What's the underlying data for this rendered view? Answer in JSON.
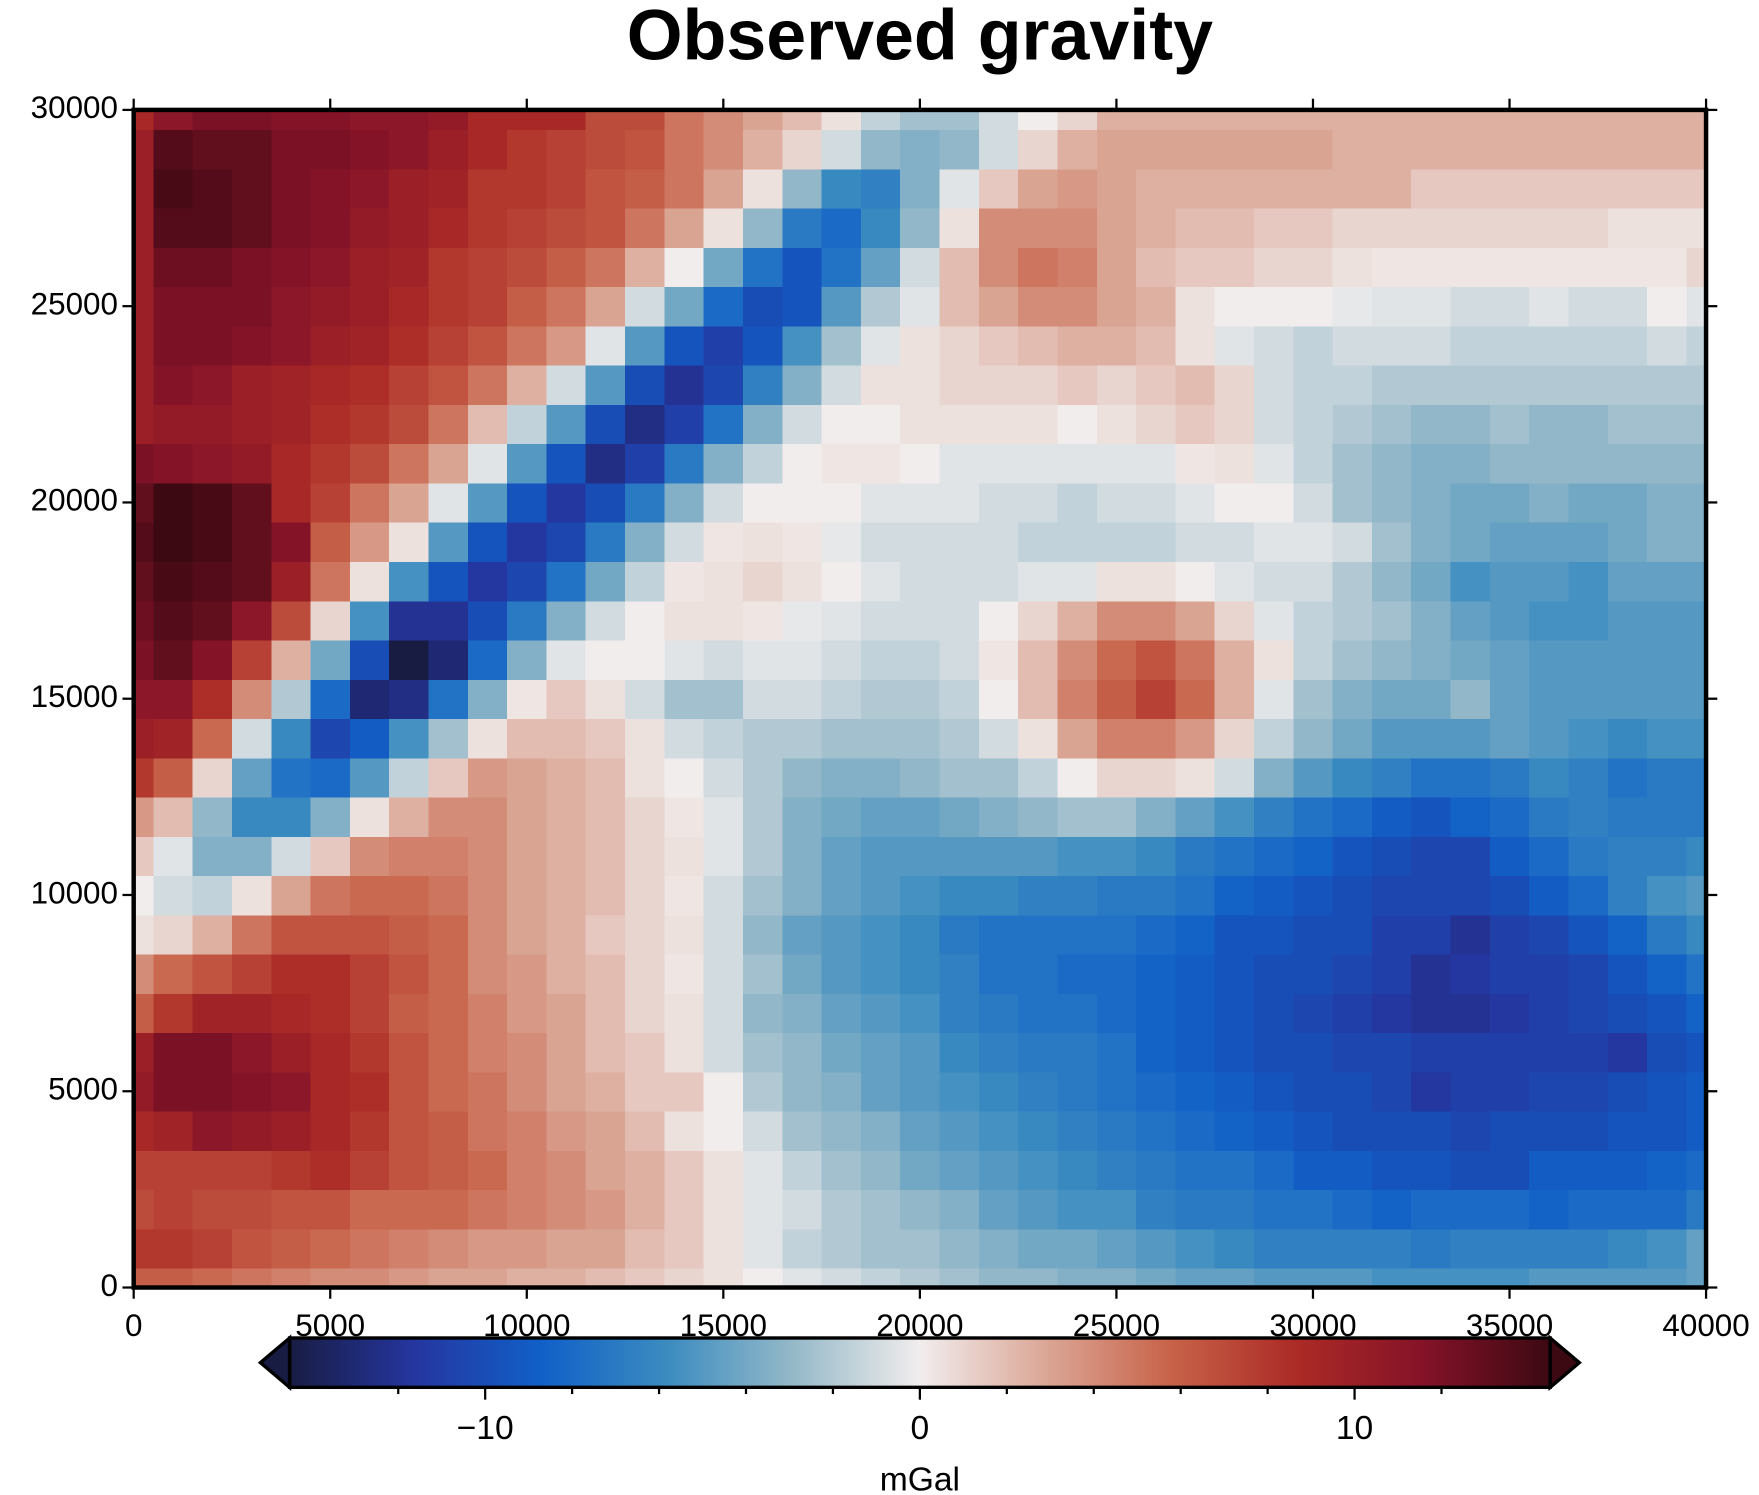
{
  "chart_data": {
    "type": "heatmap",
    "title": "Observed gravity",
    "x": [
      0,
      1000,
      2000,
      3000,
      4000,
      5000,
      6000,
      7000,
      8000,
      9000,
      10000,
      11000,
      12000,
      13000,
      14000,
      15000,
      16000,
      17000,
      18000,
      19000,
      20000,
      21000,
      22000,
      23000,
      24000,
      25000,
      26000,
      27000,
      28000,
      29000,
      30000,
      31000,
      32000,
      33000,
      34000,
      35000,
      36000,
      37000,
      38000,
      39000,
      40000
    ],
    "y": [
      0,
      1000,
      2000,
      3000,
      4000,
      5000,
      6000,
      7000,
      8000,
      9000,
      10000,
      11000,
      12000,
      13000,
      14000,
      15000,
      16000,
      17000,
      18000,
      19000,
      20000,
      21000,
      22000,
      23000,
      24000,
      25000,
      26000,
      27000,
      28000,
      29000,
      30000
    ],
    "z": [
      [
        6,
        6,
        5.5,
        5,
        4.5,
        4,
        4,
        3.5,
        3,
        3,
        2.5,
        2.5,
        2,
        1.5,
        1,
        0.5,
        0,
        -0.5,
        -1,
        -1.5,
        -2,
        -2.5,
        -3,
        -3,
        -3.5,
        -3.5,
        -4,
        -4.5,
        -4.5,
        -5,
        -5,
        -5,
        -5.5,
        -5.5,
        -5.5,
        -5.5,
        -5,
        -5,
        -5,
        -5,
        -4.5
      ],
      [
        8,
        8,
        7.5,
        6.5,
        6,
        5.5,
        5,
        4.5,
        4,
        3.5,
        3.5,
        3,
        3,
        2,
        1.5,
        0.5,
        -0.5,
        -1.5,
        -2,
        -2.5,
        -2.5,
        -3,
        -3.5,
        -4,
        -4,
        -4.5,
        -5,
        -5.5,
        -6,
        -6.5,
        -6.5,
        -6.5,
        -6.5,
        -7,
        -6.5,
        -6.5,
        -6.5,
        -6.5,
        -6,
        -5.5,
        -4.5
      ],
      [
        7,
        7.5,
        7,
        7,
        6.5,
        6.5,
        5.5,
        5.5,
        5.5,
        5,
        4.5,
        4,
        3.5,
        2.5,
        1.5,
        0.5,
        -0.5,
        -1,
        -2,
        -2.5,
        -3,
        -3.5,
        -4.5,
        -5,
        -5.5,
        -5.5,
        -6.5,
        -7,
        -7,
        -7.5,
        -7.5,
        -8,
        -8.5,
        -8,
        -8,
        -8,
        -8.5,
        -8,
        -8,
        -8,
        -7
      ],
      [
        7.5,
        7.5,
        7.5,
        7.5,
        8,
        8.5,
        7.5,
        6.5,
        6,
        5.5,
        4.5,
        4,
        3,
        2.5,
        1.5,
        0.5,
        -0.5,
        -1.5,
        -2.5,
        -3,
        -4,
        -4.5,
        -5,
        -5.5,
        -6,
        -6.5,
        -7,
        -7.5,
        -7.5,
        -8,
        -9,
        -9,
        -9.5,
        -9.5,
        -10,
        -10,
        -9,
        -9,
        -9,
        -8.5,
        -8
      ],
      [
        9,
        9.5,
        11,
        10.5,
        10,
        9,
        8,
        6.5,
        6,
        5,
        4.5,
        3.5,
        3,
        2,
        0.5,
        0,
        -1,
        -2.5,
        -3,
        -3.5,
        -4.5,
        -5,
        -5.5,
        -6,
        -6.5,
        -7,
        -7.5,
        -8,
        -8.5,
        -9,
        -9.5,
        -10,
        -10,
        -10,
        -10.5,
        -10,
        -10,
        -10,
        -9.5,
        -9.5,
        -9
      ],
      [
        10.5,
        12,
        12,
        11.5,
        11,
        9,
        8.5,
        6.5,
        5.5,
        5,
        4,
        3,
        2.5,
        1.5,
        1.5,
        0,
        -2,
        -3,
        -3.5,
        -4.5,
        -5,
        -5.5,
        -6,
        -6.5,
        -7,
        -7.5,
        -8,
        -8.5,
        -9,
        -9.5,
        -10,
        -10,
        -10.5,
        -11.5,
        -11,
        -11,
        -10.5,
        -10.5,
        -10,
        -9.5,
        -9
      ],
      [
        10,
        12,
        12,
        11,
        10,
        9,
        8,
        6.5,
        5.5,
        4.5,
        4,
        3,
        2,
        1.5,
        0.5,
        -1,
        -2.5,
        -3,
        -4,
        -4.5,
        -5,
        -6,
        -6.5,
        -7,
        -7,
        -7.5,
        -8.5,
        -9,
        -9.5,
        -10,
        -10,
        -10.5,
        -10.5,
        -11,
        -11,
        -11,
        -11,
        -11,
        -11.5,
        -10,
        -9.5
      ],
      [
        6,
        8,
        9.5,
        9.5,
        9,
        8.5,
        7.5,
        6,
        5.5,
        4.5,
        3.5,
        3,
        2,
        1,
        0.5,
        -1,
        -3,
        -3.5,
        -4.5,
        -5,
        -5.5,
        -6.5,
        -7,
        -7.5,
        -7.5,
        -8,
        -8.5,
        -9,
        -9.5,
        -10,
        -10.5,
        -11,
        -11.5,
        -12,
        -12,
        -11.5,
        -11,
        -10.5,
        -10,
        -9.5,
        -8.5
      ],
      [
        4,
        5.5,
        6.5,
        7.5,
        8.5,
        8.5,
        7.5,
        6.5,
        5.5,
        4,
        3.5,
        2.5,
        2,
        1,
        0.3,
        -1,
        -2.5,
        -4,
        -5,
        -5.5,
        -6,
        -6.5,
        -7.5,
        -7.5,
        -8,
        -8,
        -8.5,
        -9,
        -9.5,
        -10,
        -10,
        -10.5,
        -11,
        -12,
        -11.5,
        -11,
        -11,
        -10.5,
        -9.5,
        -8.5,
        -7.5
      ],
      [
        0.5,
        1,
        2.5,
        5,
        6.5,
        6.5,
        6.5,
        6,
        5.5,
        4,
        3,
        2.5,
        1.5,
        1,
        0.5,
        -1,
        -3,
        -4.5,
        -5,
        -5.5,
        -6,
        -7,
        -7.5,
        -7.5,
        -7.5,
        -7.5,
        -8,
        -8.5,
        -9.5,
        -9.5,
        -10,
        -10,
        -11,
        -11,
        -12,
        -11,
        -10.5,
        -9.5,
        -8.5,
        -7,
        -6
      ],
      [
        0,
        -1,
        -1.5,
        0.5,
        3,
        5,
        5.5,
        5.5,
        5,
        4,
        3,
        2.5,
        2,
        1,
        0.3,
        -1,
        -2.5,
        -3.5,
        -4.5,
        -5,
        -5.5,
        -6,
        -6,
        -6.5,
        -6.5,
        -7,
        -7,
        -7.5,
        -8.5,
        -9,
        -9.5,
        -10,
        -10.5,
        -10.5,
        -10.5,
        -10,
        -9,
        -8,
        -6.5,
        -5.5,
        -5
      ],
      [
        1.5,
        -0.5,
        -3.5,
        -3.5,
        -1,
        1.5,
        4,
        4.5,
        4.5,
        4,
        3,
        2.5,
        2,
        1,
        0.5,
        -0.5,
        -2,
        -3.5,
        -4.5,
        -5,
        -5,
        -5,
        -5,
        -5,
        -5.5,
        -5.5,
        -6,
        -7,
        -7.5,
        -8,
        -8.5,
        -9.5,
        -10,
        -10.5,
        -10.5,
        -9,
        -8,
        -7,
        -6.5,
        -6.5,
        -6
      ],
      [
        3.5,
        2,
        -3,
        -6,
        -6,
        -3.5,
        0.5,
        2.5,
        4,
        4,
        3,
        2.5,
        2,
        1,
        0.3,
        -0.5,
        -2,
        -3.5,
        -4,
        -4.5,
        -4.5,
        -4,
        -3.5,
        -3,
        -2.5,
        -2.5,
        -3.5,
        -4.5,
        -5.5,
        -6.5,
        -7.5,
        -8,
        -9,
        -9.5,
        -8.5,
        -8,
        -7,
        -6.5,
        -7,
        -7,
        -7
      ],
      [
        8,
        6,
        1,
        -4.5,
        -7.5,
        -8,
        -5,
        -1.5,
        1.5,
        3.5,
        3,
        2.5,
        2,
        0.5,
        0,
        -1,
        -2,
        -3,
        -3.5,
        -3.5,
        -3,
        -2.5,
        -2.5,
        -1.5,
        0,
        1,
        1,
        0.5,
        -1,
        -3.5,
        -5,
        -6,
        -6.5,
        -7.5,
        -7.5,
        -7,
        -6,
        -6.5,
        -7.5,
        -7,
        -7
      ],
      [
        10,
        9.5,
        5.5,
        -1,
        -6,
        -10.5,
        -9,
        -5.5,
        -2.5,
        0.5,
        2,
        2,
        1.5,
        0.5,
        -1,
        -1.5,
        -2,
        -2,
        -2.5,
        -2.5,
        -2.5,
        -2,
        -1,
        0.5,
        3,
        4.5,
        4.5,
        3.5,
        1,
        -1.5,
        -3,
        -4,
        -5,
        -5,
        -5,
        -4.5,
        -5,
        -5.5,
        -6,
        -5.5,
        -5.5
      ],
      [
        11,
        11,
        8.5,
        4,
        -2,
        -8,
        -13,
        -12.5,
        -7.5,
        -3.5,
        0.3,
        1.5,
        0.5,
        -1,
        -2.5,
        -2.5,
        -1,
        -1,
        -1.5,
        -2,
        -2,
        -1.5,
        0,
        2,
        4.5,
        6,
        7.5,
        5.5,
        2.5,
        -0.5,
        -2.5,
        -3.5,
        -4,
        -4,
        -3,
        -4.5,
        -5,
        -5,
        -5,
        -5,
        -5
      ],
      [
        12,
        13,
        11.5,
        7.5,
        2.5,
        -4,
        -10,
        -14.5,
        -13,
        -8,
        -3.5,
        -0.5,
        0,
        0,
        -0.5,
        -1,
        -0.5,
        -0.5,
        -1,
        -1.5,
        -1.5,
        -1,
        0.3,
        2,
        4,
        5.5,
        6.5,
        5,
        2.5,
        0.5,
        -1.5,
        -2.5,
        -3,
        -3.5,
        -4,
        -4.5,
        -5,
        -5,
        -5,
        -5,
        -5
      ],
      [
        12.5,
        13.5,
        13,
        11,
        7,
        1,
        -5.5,
        -12,
        -12,
        -10,
        -7,
        -3.5,
        -1,
        0,
        0.5,
        0.5,
        0.3,
        -0.3,
        -0.5,
        -1,
        -1,
        -1,
        0,
        1,
        2.5,
        4,
        4,
        3,
        1,
        -0.5,
        -1.5,
        -2,
        -2.5,
        -3.5,
        -4.5,
        -5,
        -5.5,
        -5.5,
        -5,
        -5,
        -5
      ],
      [
        13,
        14,
        13.5,
        13,
        10,
        5,
        0.5,
        -5.5,
        -9.5,
        -11.5,
        -10.5,
        -7.5,
        -4,
        -1.5,
        0.3,
        0.5,
        1,
        0.5,
        0,
        -0.5,
        -1,
        -1,
        -1,
        -0.5,
        -0.5,
        0.5,
        0.5,
        0,
        -0.5,
        -1,
        -1,
        -2,
        -3,
        -4,
        -5.5,
        -5,
        -5,
        -5.5,
        -4.5,
        -4.5,
        -4.5
      ],
      [
        13.5,
        14.5,
        14,
        13,
        11.5,
        6,
        3.5,
        0.5,
        -5,
        -9.5,
        -11.5,
        -10.5,
        -7,
        -3.5,
        -1,
        0.3,
        0.5,
        0.3,
        -0.3,
        -1,
        -1,
        -1,
        -1,
        -1.5,
        -1.5,
        -1.5,
        -1.5,
        -1,
        -1,
        -0.5,
        -0.5,
        -1,
        -2.5,
        -3.5,
        -4,
        -4.5,
        -4.5,
        -4.5,
        -4,
        -3.5,
        -3.5
      ],
      [
        13,
        14.5,
        14,
        13,
        9,
        7.5,
        5,
        3,
        -0.5,
        -5,
        -9.5,
        -11.5,
        -10,
        -7,
        -3.5,
        -1,
        0,
        0,
        0,
        -0.5,
        -0.5,
        -0.5,
        -1,
        -1,
        -1.5,
        -1,
        -1,
        -0.5,
        0,
        0,
        -1,
        -2.5,
        -3,
        -3.5,
        -4,
        -4,
        -3.5,
        -4,
        -4,
        -3.5,
        -3.5
      ],
      [
        12,
        11.5,
        11,
        10.5,
        9,
        8,
        7,
        5,
        3,
        -0.5,
        -5,
        -9.5,
        -12.5,
        -11,
        -7,
        -3.5,
        -1.5,
        0,
        0.3,
        0.3,
        0,
        -0.5,
        -0.5,
        -0.5,
        -0.5,
        -0.5,
        -0.5,
        0.3,
        0.5,
        -0.5,
        -1.5,
        -2.5,
        -3,
        -3.5,
        -3.5,
        -3,
        -3,
        -3,
        -3,
        -3,
        -3
      ],
      [
        10,
        10.5,
        10.5,
        10,
        9.5,
        8.5,
        8,
        7,
        5,
        2,
        -1.5,
        -5,
        -10,
        -12.5,
        -11,
        -7.5,
        -3.5,
        -1,
        0,
        0,
        0.5,
        0.5,
        0.5,
        0.5,
        0,
        0.5,
        1,
        1.5,
        1,
        -1,
        -1.5,
        -2,
        -2.5,
        -3,
        -3,
        -2.5,
        -3,
        -3,
        -2.5,
        -2.5,
        -2.5
      ],
      [
        10,
        11.5,
        11,
        10,
        9.5,
        9,
        8.5,
        7.5,
        6.5,
        5,
        2.5,
        -1,
        -5,
        -10,
        -12,
        -10.5,
        -6.5,
        -3.5,
        -1,
        0.5,
        0.5,
        1,
        1,
        1,
        1.5,
        1,
        1.5,
        2,
        1,
        -1,
        -1.5,
        -1.5,
        -2,
        -2,
        -2,
        -2,
        -2,
        -2,
        -2,
        -2,
        -2
      ],
      [
        10,
        12,
        12,
        11.5,
        11,
        10,
        9.5,
        8.5,
        7.5,
        6.5,
        5,
        3.5,
        -0.5,
        -5,
        -9.5,
        -11,
        -9.5,
        -5.5,
        -2.5,
        -0.5,
        0.5,
        1,
        1.5,
        2,
        2.5,
        2.5,
        2,
        0.5,
        -0.5,
        -1,
        -1.5,
        -1,
        -1,
        -1,
        -1.5,
        -1.5,
        -1.5,
        -1.5,
        -1.5,
        -1,
        -1.5
      ],
      [
        10,
        12,
        12,
        12,
        11,
        10.5,
        10,
        9,
        8,
        7.5,
        6,
        5,
        3,
        -1,
        -4,
        -8,
        -10,
        -9.5,
        -5,
        -2,
        -0.5,
        2,
        3,
        4,
        4,
        3,
        2.5,
        0.5,
        0,
        0,
        0,
        -0.3,
        -0.5,
        -0.5,
        -1,
        -1,
        -0.5,
        -1,
        -1,
        0,
        -0.5
      ],
      [
        10,
        12.5,
        12.5,
        12,
        11.5,
        11,
        10,
        9.5,
        8,
        7.5,
        7,
        6,
        5,
        2.5,
        0,
        -4,
        -7.5,
        -9.5,
        -7.5,
        -4.5,
        -1,
        2,
        4,
        5,
        4.5,
        3,
        2,
        1.5,
        1.5,
        1,
        1,
        0.5,
        0.3,
        0.3,
        0.3,
        0.3,
        0.3,
        0.3,
        0.3,
        0.3,
        1
      ],
      [
        10,
        13.5,
        13.5,
        13,
        12,
        11.5,
        10.5,
        10,
        9,
        8,
        7.5,
        7,
        6.5,
        5,
        3,
        0.5,
        -3,
        -7,
        -8,
        -6,
        -3,
        0.5,
        4,
        4,
        4,
        3,
        2.5,
        2,
        2,
        1.5,
        1.5,
        1,
        1,
        1,
        1,
        1,
        1,
        1,
        0.5,
        0.5,
        0.5
      ],
      [
        10,
        14,
        13.5,
        13,
        12,
        11.5,
        11,
        10,
        9.5,
        8,
        8,
        7.5,
        6.5,
        6,
        5,
        3,
        0.5,
        -3,
        -6,
        -6.5,
        -3.5,
        -0.5,
        1.5,
        3,
        3.5,
        3,
        2.5,
        2.5,
        2.5,
        2.5,
        2.5,
        2.5,
        2.5,
        1.5,
        1.5,
        1.5,
        1.5,
        1.5,
        1.5,
        1.5,
        1.5
      ],
      [
        10,
        13.5,
        13,
        13,
        12,
        12,
        11.5,
        11,
        10,
        9,
        8,
        7.5,
        7,
        6.5,
        5,
        4,
        2.5,
        1,
        -1,
        -3,
        -3.5,
        -3,
        -1,
        1,
        2.5,
        3,
        3,
        3,
        3,
        3,
        3,
        2.5,
        2.5,
        2.5,
        2.5,
        2.5,
        2.5,
        2.5,
        2.5,
        2.5,
        2.5
      ],
      [
        9,
        11,
        12,
        12,
        11.5,
        11.5,
        11,
        11,
        10.5,
        9,
        9,
        9,
        7,
        7,
        5,
        4,
        3,
        2,
        0.5,
        -1.5,
        -2.5,
        -2.5,
        -1,
        0,
        1,
        2.5,
        2.5,
        2.5,
        2.5,
        2.5,
        2.5,
        2.5,
        2.5,
        2.5,
        2.5,
        2.5,
        2.5,
        2.5,
        2.5,
        2.5,
        2.5
      ]
    ],
    "xlim": [
      0,
      40000
    ],
    "ylim": [
      0,
      30000
    ],
    "xticks": [
      0,
      5000,
      10000,
      15000,
      20000,
      25000,
      30000,
      35000,
      40000
    ],
    "yticks": [
      0,
      5000,
      10000,
      15000,
      20000,
      25000,
      30000
    ],
    "colorbar": {
      "label": "mGal",
      "clim": [
        -14.5,
        14.5
      ],
      "ticks": [
        {
          "value": -10,
          "label": "−10"
        },
        0,
        10
      ],
      "minor_ticks": [
        -12,
        -8,
        -6,
        -4,
        -2,
        2,
        4,
        6,
        8,
        12
      ],
      "colormap": [
        "#181c43",
        "#2536a0",
        "#1060c8",
        "#3c8cc0",
        "#95b9c8",
        "#f1eded",
        "#dba696",
        "#c76248",
        "#ab2a26",
        "#841228",
        "#3c0912"
      ],
      "extend": "both"
    }
  }
}
